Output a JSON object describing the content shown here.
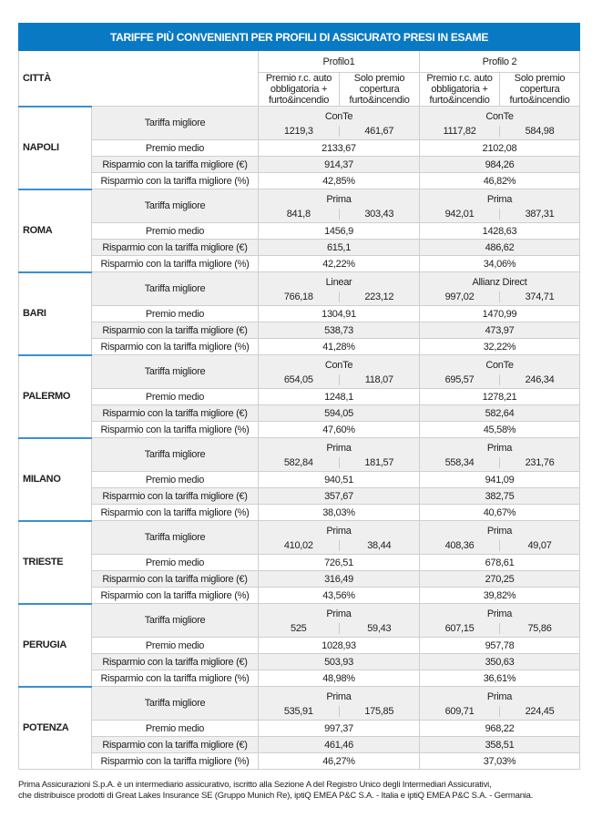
{
  "title": "TARIFFE PIÙ CONVENIENTI PER PROFILI DI ASSICURATO PRESI IN ESAME",
  "header": {
    "city": "CITTÀ",
    "profile1": "Profilo1",
    "profile2": "Profilo 2",
    "col_a": "Premio r.c. auto obbligatoria + furto&incendio",
    "col_b": "Solo premio copertura furto&incendio"
  },
  "labels": {
    "best": "Tariffa migliore",
    "avg": "Premio medio",
    "save_eur": "Risparmio con la tariffa migliore (€)",
    "save_pct": "Risparmio con la tariffa migliore (%)"
  },
  "cities": [
    {
      "name": "NAPOLI",
      "p1": {
        "provider": "ConTe",
        "a": "1219,3",
        "b": "461,67",
        "avg": "2133,67",
        "save_eur": "914,37",
        "save_pct": "42,85%"
      },
      "p2": {
        "provider": "ConTe",
        "a": "1117,82",
        "b": "584,98",
        "avg": "2102,08",
        "save_eur": "984,26",
        "save_pct": "46,82%"
      }
    },
    {
      "name": "ROMA",
      "p1": {
        "provider": "Prima",
        "a": "841,8",
        "b": "303,43",
        "avg": "1456,9",
        "save_eur": "615,1",
        "save_pct": "42,22%"
      },
      "p2": {
        "provider": "Prima",
        "a": "942,01",
        "b": "387,31",
        "avg": "1428,63",
        "save_eur": "486,62",
        "save_pct": "34,06%"
      }
    },
    {
      "name": "BARI",
      "p1": {
        "provider": "Linear",
        "a": "766,18",
        "b": "223,12",
        "avg": "1304,91",
        "save_eur": "538,73",
        "save_pct": "41,28%"
      },
      "p2": {
        "provider": "Allianz Direct",
        "a": "997,02",
        "b": "374,71",
        "avg": "1470,99",
        "save_eur": "473,97",
        "save_pct": "32,22%"
      }
    },
    {
      "name": "PALERMO",
      "p1": {
        "provider": "ConTe",
        "a": "654,05",
        "b": "118,07",
        "avg": "1248,1",
        "save_eur": "594,05",
        "save_pct": "47,60%"
      },
      "p2": {
        "provider": "ConTe",
        "a": "695,57",
        "b": "246,34",
        "avg": "1278,21",
        "save_eur": "582,64",
        "save_pct": "45,58%"
      }
    },
    {
      "name": "MILANO",
      "p1": {
        "provider": "Prima",
        "a": "582,84",
        "b": "181,57",
        "avg": "940,51",
        "save_eur": "357,67",
        "save_pct": "38,03%"
      },
      "p2": {
        "provider": "Prima",
        "a": "558,34",
        "b": "231,76",
        "avg": "941,09",
        "save_eur": "382,75",
        "save_pct": "40,67%"
      }
    },
    {
      "name": "TRIESTE",
      "p1": {
        "provider": "Prima",
        "a": "410,02",
        "b": "38,44",
        "avg": "726,51",
        "save_eur": "316,49",
        "save_pct": "43,56%"
      },
      "p2": {
        "provider": "Prima",
        "a": "408,36",
        "b": "49,07",
        "avg": "678,61",
        "save_eur": "270,25",
        "save_pct": "39,82%"
      }
    },
    {
      "name": "PERUGIA",
      "p1": {
        "provider": "Prima",
        "a": "525",
        "b": "59,43",
        "avg": "1028,93",
        "save_eur": "503,93",
        "save_pct": "48,98%"
      },
      "p2": {
        "provider": "Prima",
        "a": "607,15",
        "b": "75,86",
        "avg": "957,78",
        "save_eur": "350,63",
        "save_pct": "36,61%"
      }
    },
    {
      "name": "POTENZA",
      "p1": {
        "provider": "Prima",
        "a": "535,91",
        "b": "175,85",
        "avg": "997,37",
        "save_eur": "461,46",
        "save_pct": "46,27%"
      },
      "p2": {
        "provider": "Prima",
        "a": "609,71",
        "b": "224,45",
        "avg": "968,22",
        "save_eur": "358,51",
        "save_pct": "37,03%"
      }
    }
  ],
  "footer": [
    "Prima Assicurazioni S.p.A. è un intermediario assicurativo, iscritto alla Sezione A del Registro Unico degli Intermediari Assicurativi,",
    "che distribuisce prodotti di Great Lakes Insurance SE (Gruppo Munich Re), iptiQ EMEA P&C S.A. - Italia e iptiQ EMEA P&C S.A. - Germania."
  ]
}
